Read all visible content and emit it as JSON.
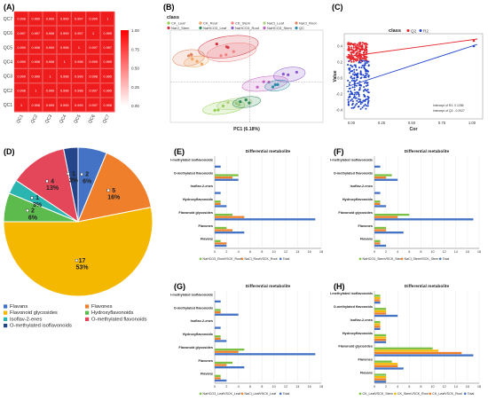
{
  "panel_labels": {
    "a": "(A)",
    "b": "(B)",
    "c": "(C)",
    "d": "(D)",
    "e": "(E)",
    "f": "(F)",
    "g": "(G)",
    "h": "(H)"
  },
  "colors": {
    "heat_high": "#ff0000",
    "heat_cell": "#ee1c1c",
    "flavonoid_glycosides": "#f5b800",
    "flavones": "#f07f2b",
    "hydroxyflavonoids": "#5dba4c",
    "isoflav2enes": "#2bb5b0",
    "omethylated_flavonoids": "#e4475a",
    "omethylated_isoflavonoids": "#24458a",
    "flavans": "#4472c4",
    "q2": "#e8262c",
    "r2": "#1f43c9"
  },
  "chart_data": [
    {
      "id": "A",
      "type": "heatmap",
      "rows": [
        "QC7",
        "QC6",
        "QC5",
        "QC4",
        "QC3",
        "QC2",
        "QC1"
      ],
      "cols": [
        "QC1",
        "QC2",
        "QC3",
        "QC4",
        "QC5",
        "QC6",
        "QC7"
      ],
      "values": [
        [
          0.998,
          0.999,
          0.999,
          0.999,
          0.997,
          0.999,
          1
        ],
        [
          0.997,
          0.997,
          0.998,
          0.999,
          0.997,
          1,
          0.999
        ],
        [
          0.999,
          0.998,
          0.999,
          0.998,
          1,
          0.997,
          0.997
        ],
        [
          0.999,
          0.998,
          0.998,
          1,
          0.998,
          0.999,
          0.999
        ],
        [
          0.999,
          0.999,
          1,
          0.998,
          0.999,
          0.998,
          0.999
        ],
        [
          0.998,
          1,
          0.999,
          0.998,
          0.998,
          0.997,
          0.999
        ],
        [
          1,
          0.998,
          0.999,
          0.999,
          0.999,
          0.997,
          0.998
        ]
      ],
      "colorbar_ticks": [
        "1.00",
        "0.75",
        "0.50",
        "0.25",
        "0.00"
      ]
    },
    {
      "id": "B",
      "type": "scatter",
      "legend_title": "class",
      "groups": [
        {
          "name": "CK_Leaf",
          "color": "#8fcf4a"
        },
        {
          "name": "CK_Root",
          "color": "#f4a460"
        },
        {
          "name": "CK_Stem",
          "color": "#f08080"
        },
        {
          "name": "NaCl_Leaf",
          "color": "#b0d080"
        },
        {
          "name": "NaCl_Root",
          "color": "#e0845c"
        },
        {
          "name": "NaCl_Stem",
          "color": "#d0303c"
        },
        {
          "name": "NaHCO3_Leaf",
          "color": "#2e8b57"
        },
        {
          "name": "NaHCO3_Root",
          "color": "#8a5ad0"
        },
        {
          "name": "NaHCO3_Stem",
          "color": "#c060c0"
        },
        {
          "name": "QC",
          "color": "#2a8ca8"
        }
      ],
      "xlabel": "PC1 (6.18%)"
    },
    {
      "id": "C",
      "type": "scatter",
      "legend_title": "class",
      "series": [
        {
          "name": "Q2"
        },
        {
          "name": "R2"
        }
      ],
      "xlabel": "Cor",
      "ylabel": "Value",
      "xticks": [
        "0.00",
        "0.25",
        "0.50",
        "0.75",
        "1.00"
      ],
      "yticks": [
        "0.4",
        "0.2",
        "0.0",
        "-0.2",
        "-0.4"
      ],
      "annotations": [
        "Intercept of R2: 0.1286",
        "Intercept of Q2: -0.2927"
      ]
    },
    {
      "id": "D",
      "type": "pie",
      "slices": [
        {
          "label": "Flavans",
          "count": "2",
          "pct": "6%",
          "value": 2
        },
        {
          "label": "Flavones",
          "count": "5",
          "pct": "16%",
          "value": 5
        },
        {
          "label": "Flavonoid glycosides",
          "count": "17",
          "pct": "53%",
          "value": 17
        },
        {
          "label": "Hydroxyflavonoids",
          "count": "2",
          "pct": "6%",
          "value": 2
        },
        {
          "label": "Isoflav-2-enes",
          "count": "1",
          "pct": "3%",
          "value": 1
        },
        {
          "label": "O-methylated flavonoids",
          "count": "4",
          "pct": "13%",
          "value": 4
        },
        {
          "label": "O-methylated isoflavonoids",
          "count": "1",
          "pct": "3%",
          "value": 1
        }
      ]
    },
    {
      "id": "E",
      "type": "bar",
      "title": "Differential metabolite",
      "categories": [
        "O-methylated isoflavonoids",
        "O-methylated flavonoids",
        "Isoflav-2-enes",
        "Hydroxyflavonoids",
        "Flavonoid glycosides",
        "Flavones",
        "Flavans"
      ],
      "series": [
        {
          "name": "NaHCO3_RootVSCK_Root",
          "values": [
            0,
            4,
            0,
            1,
            3,
            2,
            1
          ]
        },
        {
          "name": "NaCl_RootVSCK_Root",
          "values": [
            0,
            3,
            0,
            1,
            5,
            3,
            2
          ]
        },
        {
          "name": "Total",
          "values": [
            1,
            4,
            1,
            2,
            17,
            5,
            2
          ]
        }
      ],
      "xlim": [
        0,
        18
      ],
      "xticks": [
        "0",
        "2",
        "4",
        "6",
        "8",
        "10",
        "12",
        "14",
        "16",
        "18"
      ]
    },
    {
      "id": "F",
      "type": "bar",
      "title": "Differential metabolite",
      "categories": [
        "O-methylated isoflavonoids",
        "O-methylated flavonoids",
        "Isoflav-2-enes",
        "Hydroxyflavonoids",
        "Flavonoid glycosides",
        "Flavones",
        "Flavans"
      ],
      "series": [
        {
          "name": "NaHCO3_StemVSCK_Stem",
          "values": [
            0,
            3,
            0,
            1,
            6,
            2,
            1
          ]
        },
        {
          "name": "NaCl_StemVSCK_Stem",
          "values": [
            0,
            2,
            0,
            1,
            4,
            2,
            1
          ]
        },
        {
          "name": "Total",
          "values": [
            1,
            4,
            1,
            2,
            17,
            5,
            2
          ]
        }
      ],
      "xlim": [
        0,
        18
      ],
      "xticks": [
        "0",
        "2",
        "4",
        "6",
        "8",
        "10",
        "12",
        "14",
        "16",
        "18"
      ]
    },
    {
      "id": "G",
      "type": "bar",
      "title": "Differential metabolite",
      "categories": [
        "O-methylated isoflavonoids",
        "O-methylated flavonoids",
        "Isoflav-2-enes",
        "Hydroxyflavonoids",
        "Flavonoid glycosides",
        "Flavones",
        "Flavans"
      ],
      "series": [
        {
          "name": "NaHCO3_LeafVSCK_Leaf",
          "values": [
            0,
            1,
            0,
            1,
            5,
            3,
            1
          ]
        },
        {
          "name": "NaCl_LeafVSCK_Leaf",
          "values": [
            0,
            1,
            0,
            1,
            4,
            2,
            1
          ]
        },
        {
          "name": "Total",
          "values": [
            1,
            4,
            1,
            2,
            17,
            5,
            2
          ]
        }
      ],
      "xlim": [
        0,
        18
      ],
      "xticks": [
        "0",
        "2",
        "4",
        "6",
        "8",
        "10",
        "12",
        "14",
        "16",
        "18"
      ]
    },
    {
      "id": "H",
      "type": "bar",
      "title": "Differential metabolite",
      "categories": [
        "O-methylated isoflavonoids",
        "O-methylated flavonoids",
        "Isoflav-2-enes",
        "Hydroxyflavonoids",
        "Flavonoid glycosides",
        "Flavones",
        "Flavans"
      ],
      "series": [
        {
          "name": "CK_LeafVSCK_Stem",
          "values": [
            1,
            2,
            1,
            2,
            10,
            3,
            2
          ]
        },
        {
          "name": "CK_StemVSCK_Root",
          "values": [
            1,
            2,
            1,
            2,
            11,
            4,
            2
          ]
        },
        {
          "name": "CK_LeafVSCK_Root",
          "values": [
            1,
            2,
            1,
            2,
            15,
            4,
            2
          ]
        },
        {
          "name": "Total",
          "values": [
            1,
            4,
            1,
            2,
            17,
            5,
            2
          ]
        }
      ],
      "xlim": [
        0,
        18
      ],
      "xticks": [
        "0",
        "2",
        "4",
        "6",
        "8",
        "10",
        "12",
        "14",
        "16",
        "18"
      ]
    }
  ]
}
